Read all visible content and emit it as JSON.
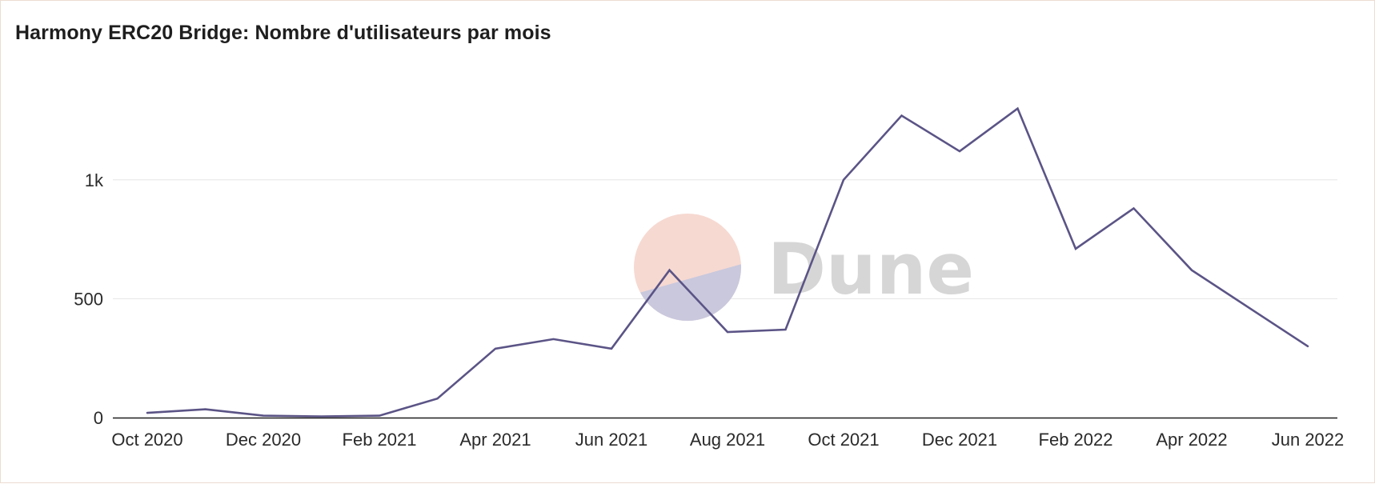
{
  "chart_data": {
    "type": "line",
    "title": "Harmony ERC20 Bridge: Nombre d'utilisateurs par mois",
    "xlabel": "",
    "ylabel": "",
    "x_tick_labels": [
      "Oct 2020",
      "Dec 2020",
      "Feb 2021",
      "Apr 2021",
      "Jun 2021",
      "Aug 2021",
      "Oct 2021",
      "Dec 2021",
      "Feb 2022",
      "Apr 2022",
      "Jun 2022"
    ],
    "y_tick_labels": [
      "0",
      "500",
      "1k"
    ],
    "y_ticks": [
      0,
      500,
      1000
    ],
    "ylim": [
      0,
      1450
    ],
    "grid": true,
    "legend": "none",
    "watermark": "Dune",
    "line_color": "#5b5486",
    "x": [
      "2020-10",
      "2020-11",
      "2020-12",
      "2021-01",
      "2021-02",
      "2021-03",
      "2021-04",
      "2021-05",
      "2021-06",
      "2021-07",
      "2021-08",
      "2021-09",
      "2021-10",
      "2021-11",
      "2021-12",
      "2022-01",
      "2022-02",
      "2022-03",
      "2022-04",
      "2022-05",
      "2022-06"
    ],
    "series": [
      {
        "values": [
          20,
          35,
          8,
          5,
          8,
          80,
          290,
          330,
          290,
          620,
          360,
          370,
          1000,
          1270,
          1120,
          1300,
          710,
          880,
          620,
          460,
          300
        ]
      }
    ]
  }
}
